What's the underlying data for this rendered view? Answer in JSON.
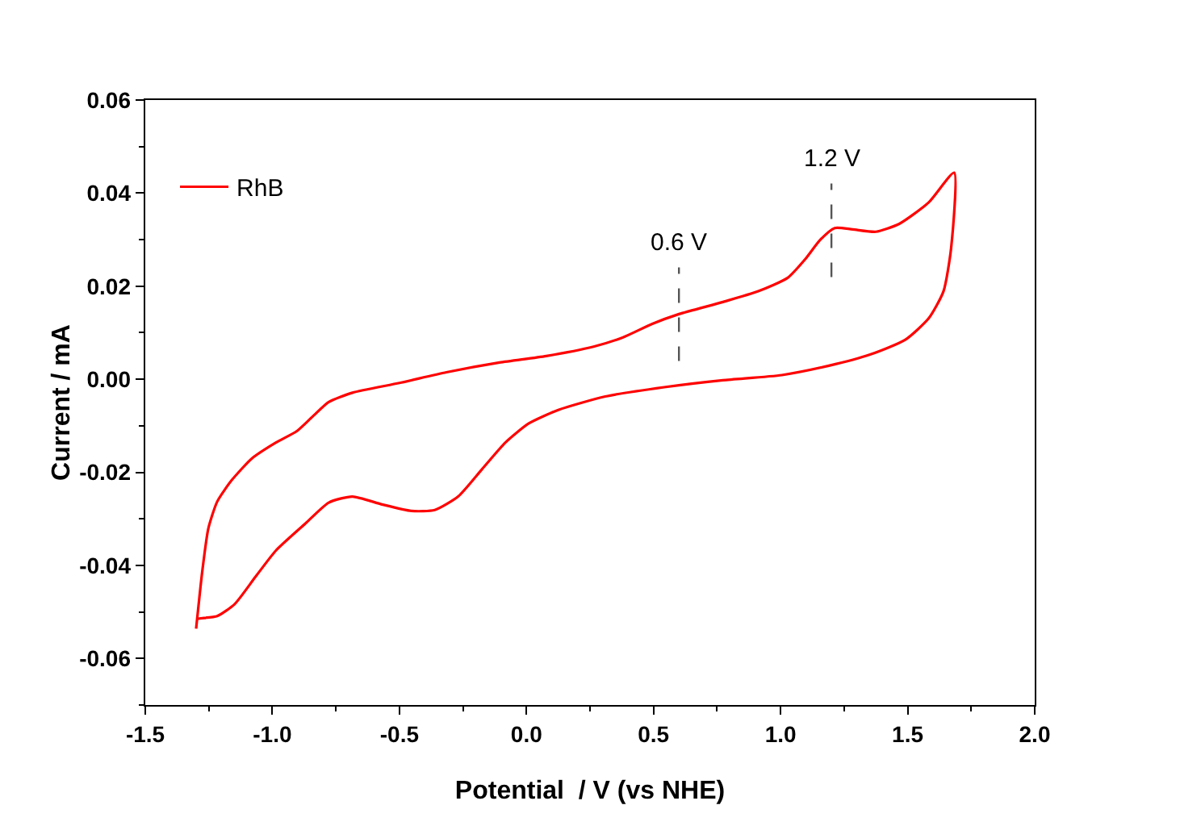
{
  "chart_data": {
    "type": "line",
    "xlabel": "Potential  / V (vs NHE)",
    "ylabel": "Current / mA",
    "xlim": [
      -1.5,
      2.0
    ],
    "xticks": [
      {
        "value": -1.5,
        "label": "-1.5"
      },
      {
        "value": -1.0,
        "label": "-1.0"
      },
      {
        "value": -0.5,
        "label": "-0.5"
      },
      {
        "value": 0,
        "label": "0.0"
      },
      {
        "value": 0.5,
        "label": "0.5"
      },
      {
        "value": 1.0,
        "label": "1.0"
      },
      {
        "value": 1.5,
        "label": "1.5"
      },
      {
        "value": 2.0,
        "label": "2.0"
      }
    ],
    "ylim": [
      -0.07,
      0.06
    ],
    "yticks": [
      {
        "value": -0.06,
        "label": "-0.06"
      },
      {
        "value": -0.04,
        "label": "-0.04"
      },
      {
        "value": -0.02,
        "label": "-0.02"
      },
      {
        "value": 0,
        "label": "0.00"
      },
      {
        "value": 0.02,
        "label": "0.02"
      },
      {
        "value": 0.04,
        "label": "0.04"
      },
      {
        "value": 0.06,
        "label": "0.06"
      }
    ],
    "series": [
      {
        "name": "RhB",
        "color": "#ff0000",
        "x": [
          -1.3,
          -1.276,
          -1.252,
          -1.217,
          -1.16,
          -1.08,
          -0.986,
          -0.905,
          -0.847,
          -0.778,
          -0.685,
          -0.5,
          -0.315,
          -0.106,
          0.078,
          0.264,
          0.38,
          0.495,
          0.6,
          0.773,
          0.912,
          1.028,
          1.097,
          1.155,
          1.213,
          1.283,
          1.375,
          1.467,
          1.583,
          1.683,
          1.671,
          1.641,
          1.583,
          1.491,
          1.352,
          1.19,
          1.005,
          0.773,
          0.542,
          0.31,
          0.125,
          0.009,
          -0.083,
          -0.176,
          -0.269,
          -0.361,
          -0.453,
          -0.569,
          -0.685,
          -0.778,
          -0.87,
          -0.986,
          -1.067,
          -1.148,
          -1.217,
          -1.287,
          -1.3
        ],
        "values": [
          -0.0536,
          -0.0414,
          -0.0321,
          -0.0263,
          -0.0217,
          -0.017,
          -0.0136,
          -0.0112,
          -0.0083,
          -0.0049,
          -0.0029,
          -0.0008,
          0.0015,
          0.0036,
          0.005,
          0.007,
          0.009,
          0.0119,
          0.014,
          0.0166,
          0.0189,
          0.0218,
          0.0258,
          0.0299,
          0.0325,
          0.0322,
          0.0317,
          0.0334,
          0.038,
          0.0444,
          0.0282,
          0.0189,
          0.0131,
          0.0085,
          0.0053,
          0.0029,
          0.0009,
          -0.0002,
          -0.0017,
          -0.0037,
          -0.0066,
          -0.0095,
          -0.0136,
          -0.0194,
          -0.0252,
          -0.0281,
          -0.0283,
          -0.0269,
          -0.0252,
          -0.0265,
          -0.031,
          -0.0368,
          -0.0425,
          -0.0483,
          -0.0509,
          -0.0514,
          -0.0516
        ]
      }
    ],
    "annotations": [
      {
        "text": "0.6 V",
        "x": 0.6,
        "y": 0.014
      },
      {
        "text": "1.2 V",
        "x": 1.2,
        "y": 0.032
      }
    ],
    "legend": "top left",
    "grid": false,
    "marker": "none",
    "line_style": "solid"
  }
}
